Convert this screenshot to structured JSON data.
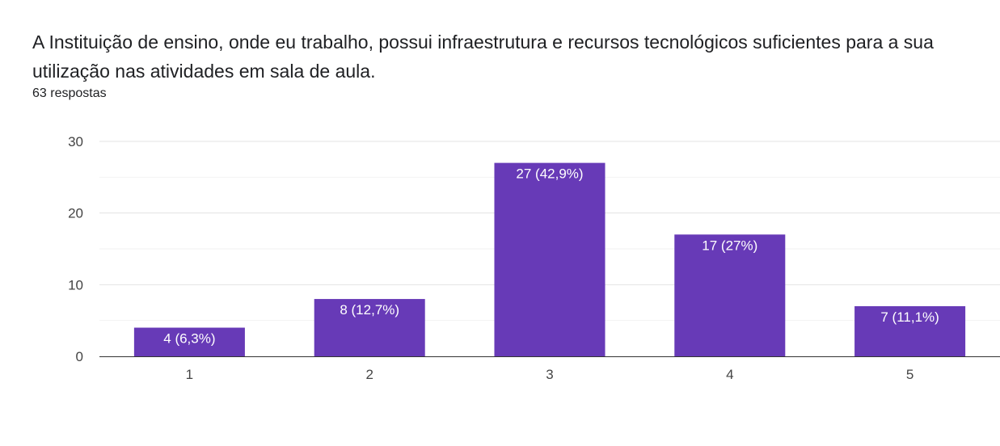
{
  "header": {
    "title": "A Instituição de ensino, onde eu trabalho, possui infraestrutura e recursos tecnológicos suficientes para a sua utilização nas atividades em sala de aula.",
    "responses": "63 respostas"
  },
  "chart_data": {
    "type": "bar",
    "categories": [
      "1",
      "2",
      "3",
      "4",
      "5"
    ],
    "values": [
      4,
      8,
      27,
      17,
      7
    ],
    "data_labels": [
      "4 (6,3%)",
      "8 (12,7%)",
      "27 (42,9%)",
      "17 (27%)",
      "7 (11,1%)"
    ],
    "y_ticks": [
      0,
      10,
      20,
      30
    ],
    "ylim": [
      0,
      30
    ],
    "bar_color": "#673ab7",
    "grid": true
  }
}
